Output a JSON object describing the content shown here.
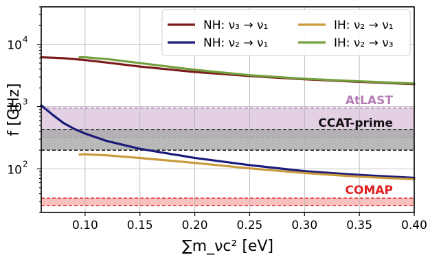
{
  "chart_data": {
    "type": "line",
    "title": "",
    "xlabel": "∑m_νc² [eV]",
    "ylabel": "f [GHz]",
    "xlim": [
      0.06,
      0.4
    ],
    "ylim": [
      20,
      40000
    ],
    "yscale": "log",
    "grid": true,
    "legend_position": "top-right",
    "x_ticks": [
      {
        "value": 0.1,
        "label": "0.10"
      },
      {
        "value": 0.15,
        "label": "0.15"
      },
      {
        "value": 0.2,
        "label": "0.20"
      },
      {
        "value": 0.25,
        "label": "0.25"
      },
      {
        "value": 0.3,
        "label": "0.30"
      },
      {
        "value": 0.35,
        "label": "0.35"
      },
      {
        "value": 0.4,
        "label": "0.40"
      }
    ],
    "y_ticks": [
      {
        "value": 100,
        "base": "10",
        "exp": "2"
      },
      {
        "value": 1000,
        "base": "10",
        "exp": "3"
      },
      {
        "value": 10000,
        "base": "10",
        "exp": "4"
      }
    ],
    "series": [
      {
        "name": "NH: ν3→ν1",
        "legend_label": "NH: ν₃ → ν₁",
        "color": "#7b1c1c",
        "x": [
          0.06,
          0.08,
          0.1,
          0.12,
          0.15,
          0.2,
          0.25,
          0.3,
          0.35,
          0.4
        ],
        "y": [
          6200,
          6000,
          5600,
          5100,
          4400,
          3600,
          3100,
          2750,
          2500,
          2300
        ]
      },
      {
        "name": "NH: ν2→ν1",
        "legend_label": "NH: ν₂ → ν₁",
        "color": "#1a1a7a",
        "x": [
          0.06,
          0.07,
          0.08,
          0.09,
          0.1,
          0.12,
          0.15,
          0.2,
          0.25,
          0.3,
          0.35,
          0.4
        ],
        "y": [
          1050,
          750,
          550,
          440,
          370,
          280,
          210,
          150,
          115,
          92,
          80,
          72
        ]
      },
      {
        "name": "IH: ν2→ν1",
        "legend_label": "IH: ν₂ → ν₁",
        "color": "#c99a3c",
        "x": [
          0.095,
          0.1,
          0.12,
          0.15,
          0.2,
          0.25,
          0.3,
          0.35,
          0.4
        ],
        "y": [
          170,
          172,
          165,
          150,
          125,
          102,
          86,
          75,
          68
        ]
      },
      {
        "name": "IH: ν2→ν3",
        "legend_label": "IH: ν₂ → ν₃",
        "color": "#72a03e",
        "x": [
          0.095,
          0.1,
          0.12,
          0.15,
          0.2,
          0.25,
          0.3,
          0.35,
          0.4
        ],
        "y": [
          6200,
          6200,
          5800,
          5000,
          3900,
          3200,
          2800,
          2550,
          2350
        ]
      }
    ],
    "bands": [
      {
        "name": "AtLAST",
        "lower": 320,
        "upper": 950,
        "fill": "#dcc4dc",
        "line_color": "#b47fb4",
        "label_color": "#b47fb4"
      },
      {
        "name": "CCAT-prime",
        "lower": 200,
        "upper": 430,
        "fill": "#a8a8a8",
        "line_color": "#111111",
        "label_color": "#111111"
      },
      {
        "name": "COMAP",
        "lower": 26,
        "upper": 34,
        "fill": "#f7b0b0",
        "line_color": "#e02020",
        "label_color": "#e02020"
      }
    ]
  }
}
